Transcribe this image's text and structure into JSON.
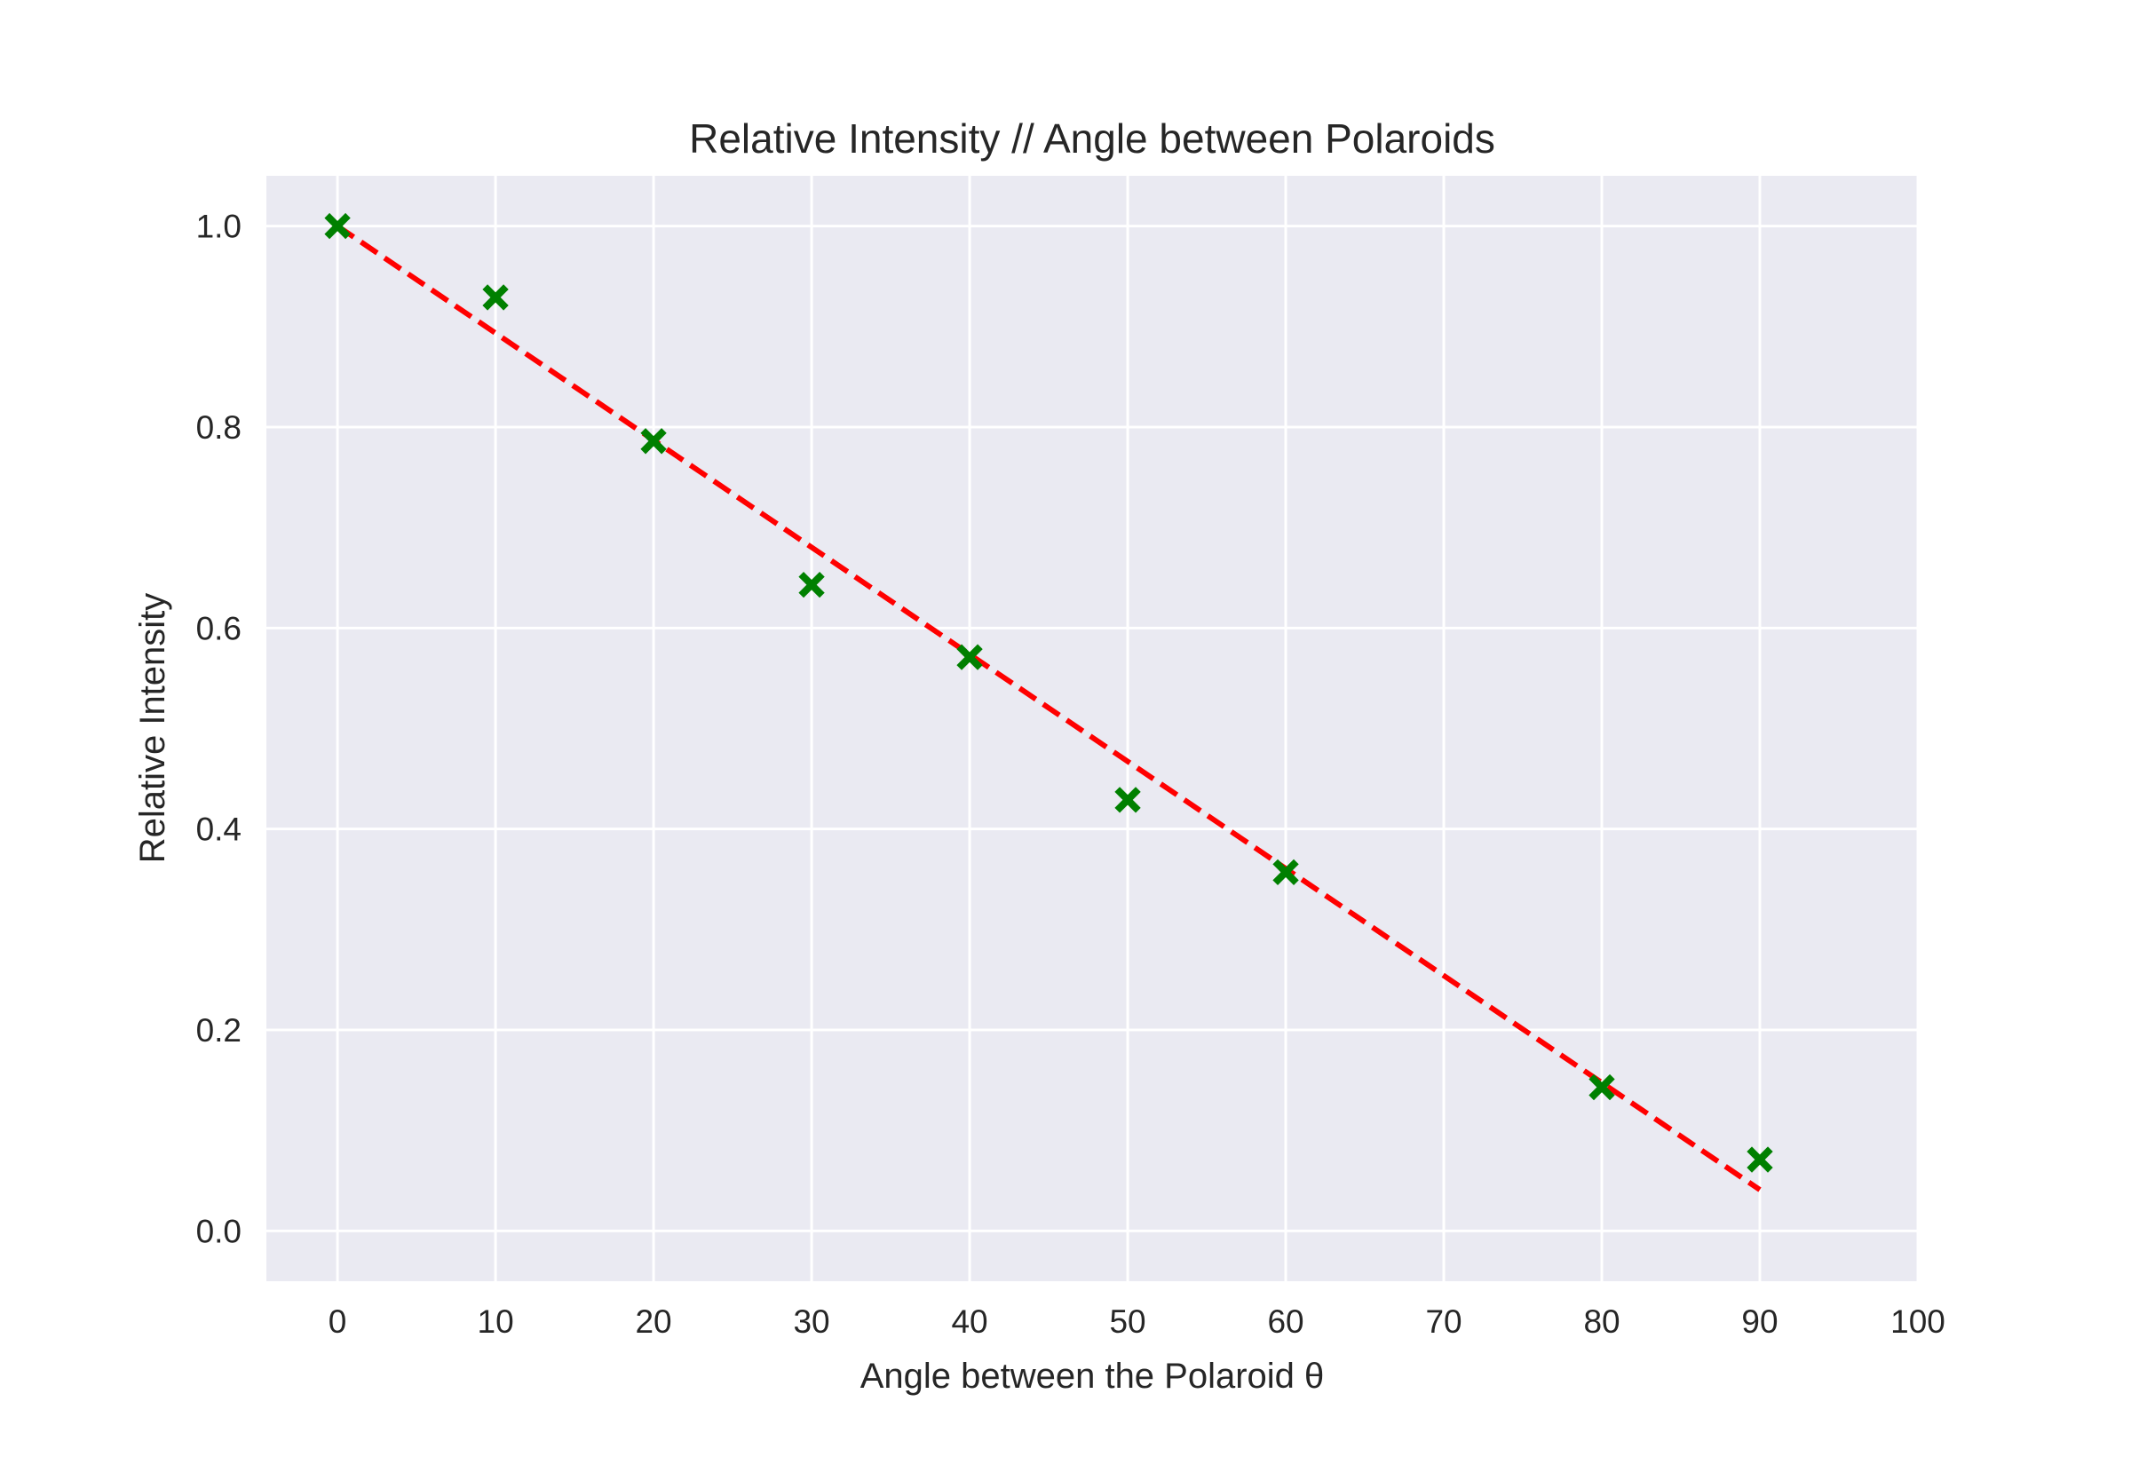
{
  "chart_data": {
    "type": "scatter",
    "title": "Relative Intensity // Angle between Polaroids",
    "xlabel": "Angle between the Polaroid θ",
    "ylabel": "Relative Intensity",
    "xlim": [
      -4.5,
      100
    ],
    "ylim": [
      -0.05,
      1.05
    ],
    "xticks": [
      0,
      10,
      20,
      30,
      40,
      50,
      60,
      70,
      80,
      90,
      100
    ],
    "yticks": [
      0.0,
      0.2,
      0.4,
      0.6,
      0.8,
      1.0
    ],
    "grid": true,
    "series": [
      {
        "kind": "points",
        "marker": "X",
        "color": "#008000",
        "x": [
          0,
          10,
          20,
          30,
          40,
          50,
          60,
          80,
          90
        ],
        "y": [
          1.0,
          0.929,
          0.786,
          0.643,
          0.571,
          0.429,
          0.357,
          0.143,
          0.071
        ]
      },
      {
        "kind": "fit-line",
        "style": "dashed",
        "color": "#ff0000",
        "x": [
          0,
          90
        ],
        "y": [
          1.0,
          0.041
        ]
      }
    ]
  },
  "colors": {
    "plot_background": "#eaeaf2",
    "grid": "#ffffff",
    "text": "#262626"
  }
}
